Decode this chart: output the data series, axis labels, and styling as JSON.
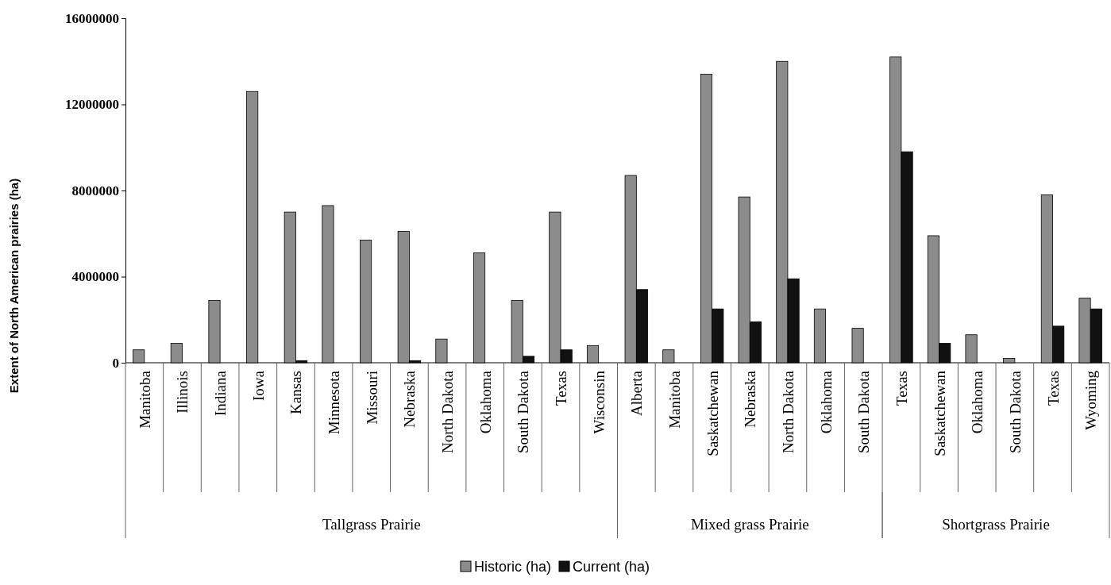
{
  "chart_data": {
    "type": "bar",
    "ylabel": "Extent of North American prairies (ha)",
    "categories": [
      "Manitoba",
      "Illinois",
      "Indiana",
      "Iowa",
      "Kansas",
      "Minnesota",
      "Missouri",
      "Nebraska",
      "North Dakota",
      "Oklahoma",
      "South Dakota",
      "Texas",
      "Wisconsin",
      "Alberta",
      "Manitoba",
      "Saskatchewan",
      "Nebraska",
      "North Dakota",
      "Oklahoma",
      "South Dakota",
      "Texas",
      "Saskatchewan",
      "Oklahoma",
      "South Dakota",
      "Texas",
      "Wyoming"
    ],
    "series": [
      {
        "name": "Historic (ha)",
        "color": "#8c8c8c",
        "values": [
          600000,
          900000,
          2900000,
          12600000,
          7000000,
          7300000,
          5700000,
          6100000,
          1100000,
          5100000,
          2900000,
          7000000,
          800000,
          8700000,
          600000,
          13400000,
          7700000,
          14000000,
          2500000,
          1600000,
          14200000,
          5900000,
          1300000,
          200000,
          7800000,
          3000000
        ]
      },
      {
        "name": "Current (ha)",
        "color": "#111111",
        "values": [
          0,
          0,
          0,
          0,
          100000,
          0,
          0,
          100000,
          0,
          0,
          300000,
          600000,
          0,
          3400000,
          0,
          2500000,
          1900000,
          3900000,
          0,
          0,
          9800000,
          900000,
          0,
          0,
          1700000,
          2500000
        ]
      }
    ],
    "ylim": [
      0,
      16000000
    ],
    "yticks": [
      0,
      4000000,
      8000000,
      12000000,
      16000000
    ],
    "annotations": [
      "Tallgrass Prairie",
      "Mixed grass Prairie",
      "Shortgrass Prairie"
    ],
    "legend": "bottom",
    "grid": false
  }
}
